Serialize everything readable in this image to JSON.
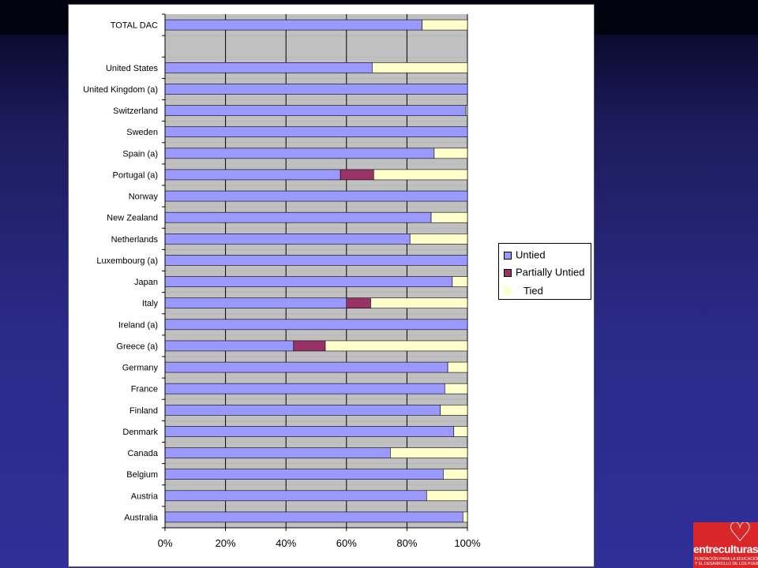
{
  "colors": {
    "untied": "#9999ff",
    "partially_untied": "#993366",
    "tied": "#ffffcc",
    "plot_background": "#c0c0c0",
    "panel_background": "#ffffff",
    "slide_background": "#2a2a88"
  },
  "chart_data": {
    "type": "bar",
    "orientation": "horizontal",
    "stacked": true,
    "percent_stacked": true,
    "categories": [
      "TOTAL DAC",
      "",
      "United States",
      "United Kingdom (a)",
      "Switzerland",
      "Sweden",
      "Spain (a)",
      "Portugal (a)",
      "Norway",
      "New Zealand",
      "Netherlands",
      "Luxembourg (a)",
      "Japan",
      "Italy",
      "Ireland (a)",
      "Greece (a)",
      "Germany",
      "France",
      "Finland",
      "Denmark",
      "Canada",
      "Belgium",
      "Austria",
      "Australia"
    ],
    "series": [
      {
        "name": "Untied",
        "values": [
          85,
          null,
          68.5,
          100,
          99.5,
          100,
          89,
          58,
          100,
          88,
          81,
          100,
          95,
          60,
          100,
          42.5,
          93.5,
          92.5,
          91,
          95.5,
          74.5,
          92,
          86.5,
          98.5
        ]
      },
      {
        "name": "Partially Untied",
        "values": [
          0,
          null,
          0,
          0,
          0,
          0,
          0,
          11,
          0,
          0,
          0,
          0,
          0,
          8,
          0,
          10.5,
          0,
          0,
          0,
          0,
          0,
          0,
          0,
          0
        ]
      },
      {
        "name": "Tied",
        "values": [
          15,
          null,
          31.5,
          0,
          0.5,
          0,
          11,
          31,
          0,
          12,
          19,
          0,
          5,
          32,
          0,
          47,
          6.5,
          7.5,
          9,
          4.5,
          25.5,
          8,
          13.5,
          1.5
        ]
      }
    ],
    "x_ticks": [
      "0%",
      "20%",
      "40%",
      "60%",
      "80%",
      "100%"
    ],
    "xlim": [
      0,
      100
    ],
    "grid": "vertical",
    "legend_position": "right",
    "legend": [
      "Untied",
      "Partially Untied",
      "Tied"
    ]
  }
}
